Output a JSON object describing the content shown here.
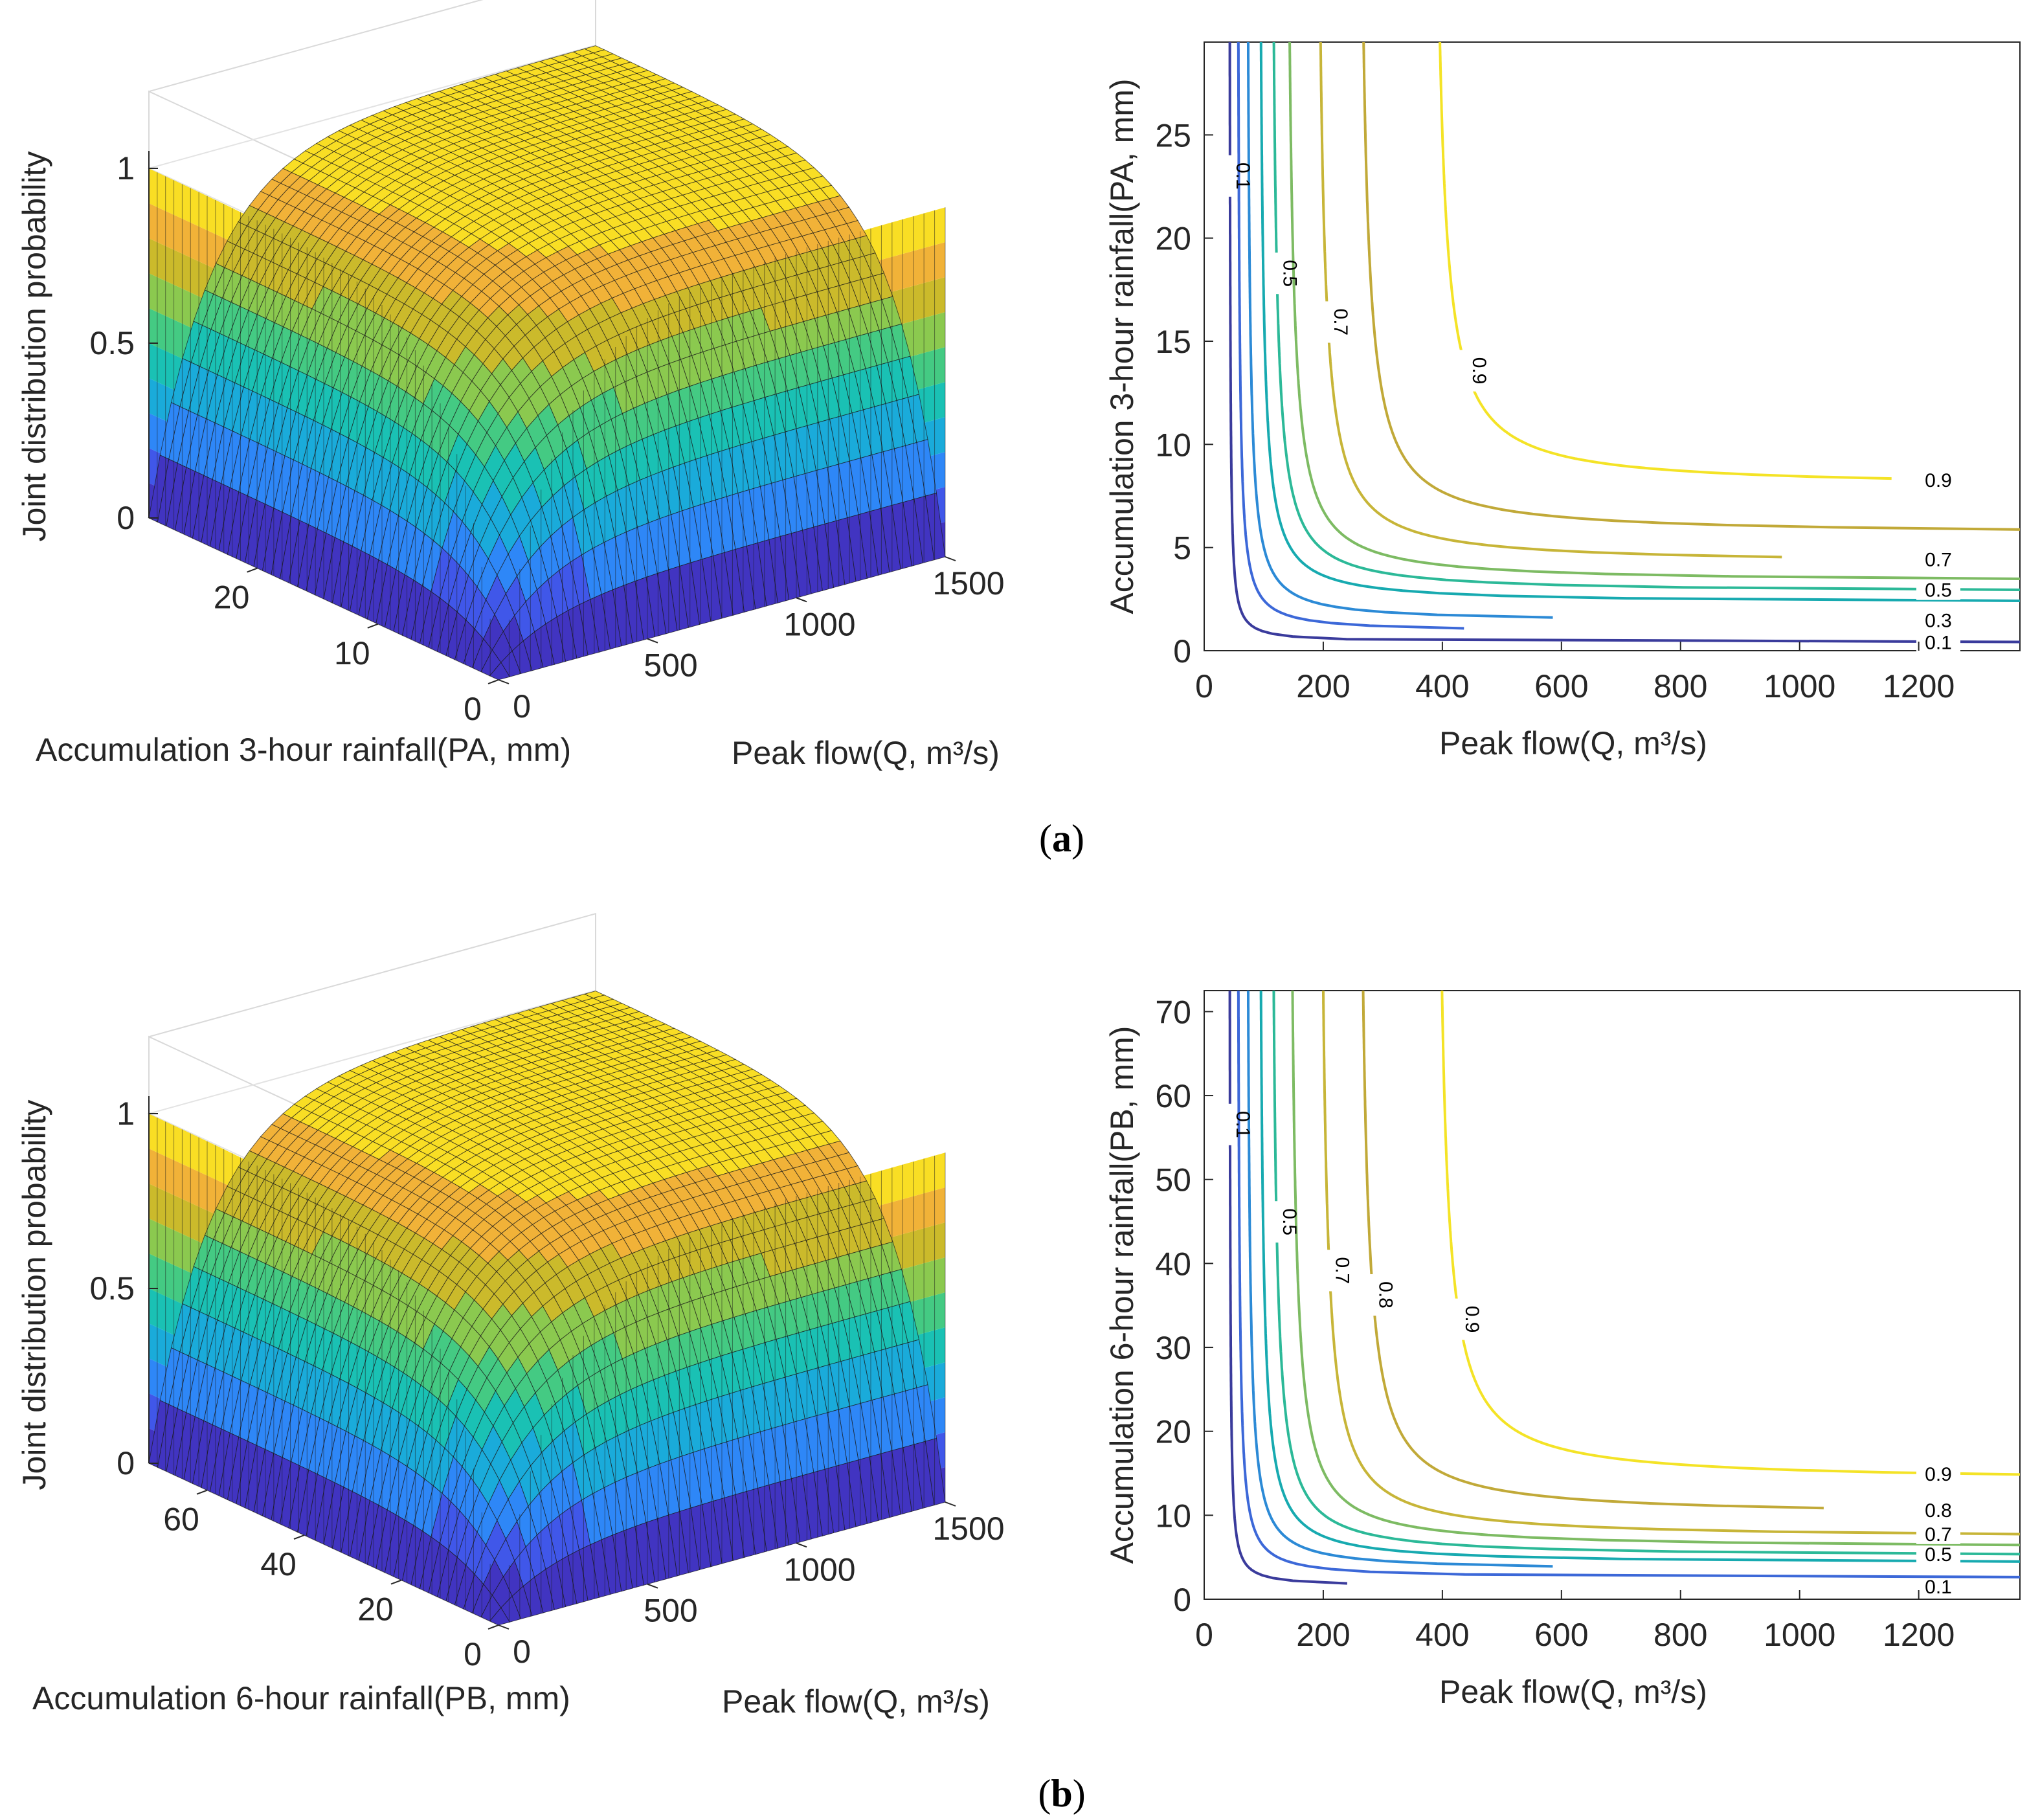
{
  "panels": [
    {
      "label_letter": "a",
      "surface": {
        "zlabel": "Joint distribution probability",
        "xlabel": "Peak flow(Q, m³/s)",
        "ylabel": "Accumulation 3-hour rainfall(PA, mm)",
        "zticks": [
          "0",
          "0.5",
          "1"
        ],
        "xticks": [
          "0",
          "500",
          "1000",
          "1500"
        ],
        "yticks": [
          "0",
          "10",
          "20"
        ]
      },
      "contour": {
        "xlabel": "Peak flow(Q, m³/s)",
        "ylabel": "Accumulation 3-hour rainfall(PA, mm)",
        "xticks": [
          "0",
          "200",
          "400",
          "600",
          "800",
          "1000",
          "1200"
        ],
        "yticks": [
          "0",
          "5",
          "10",
          "15",
          "20",
          "25"
        ]
      }
    },
    {
      "label_letter": "b",
      "surface": {
        "zlabel": "Joint distribution probability",
        "xlabel": "Peak flow(Q, m³/s)",
        "ylabel": "Accumulation 6-hour rainfall(PB, mm)",
        "zticks": [
          "0",
          "0.5",
          "1"
        ],
        "xticks": [
          "0",
          "500",
          "1000",
          "1500"
        ],
        "yticks": [
          "0",
          "20",
          "40",
          "60"
        ]
      },
      "contour": {
        "xlabel": "Peak flow(Q, m³/s)",
        "ylabel": "Accumulation 6-hour rainfall(PB, mm)",
        "xticks": [
          "0",
          "200",
          "400",
          "600",
          "800",
          "1000",
          "1200"
        ],
        "yticks": [
          "0",
          "10",
          "20",
          "30",
          "40",
          "50",
          "60",
          "70"
        ]
      }
    }
  ],
  "chart_data": [
    {
      "type": "surface",
      "panel": "a",
      "x": {
        "label": "Peak flow(Q, m³/s)",
        "range": [
          0,
          1370
        ]
      },
      "y": {
        "label": "Accumulation 3-hour rainfall(PA, mm)",
        "range": [
          0,
          29
        ]
      },
      "z": {
        "label": "Joint distribution probability",
        "range": [
          0,
          1
        ]
      },
      "colormap": [
        "#3e26a8",
        "#2e87f7",
        "#1ec8a0",
        "#cbba2b",
        "#f9b03b",
        "#f9fb15"
      ]
    },
    {
      "type": "contour",
      "panel": "a",
      "xlabel": "Peak flow(Q, m³/s)",
      "ylabel": "Accumulation 3-hour rainfall(PA, mm)",
      "xlim": [
        0,
        1370
      ],
      "ylim": [
        0,
        29.5
      ],
      "levels": [
        {
          "level": "0.1",
          "label": "0.1",
          "color": "#3a3b9c",
          "x_asymptote": 42,
          "y_asymptote": 0.4
        },
        {
          "level": "0.2",
          "label": "",
          "color": "#3c68d8",
          "x_asymptote": 55,
          "y_asymptote": 0.9
        },
        {
          "level": "0.3",
          "label": "0.3",
          "color": "#2c8ad6",
          "x_asymptote": 70,
          "y_asymptote": 1.4
        },
        {
          "level": "0.4",
          "label": "",
          "color": "#17aab0",
          "x_asymptote": 90,
          "y_asymptote": 2.3
        },
        {
          "level": "0.5",
          "label": "0.5",
          "color": "#2cb998",
          "x_asymptote": 110,
          "y_asymptote": 2.8
        },
        {
          "level": "0.6",
          "label": "",
          "color": "#7dbb63",
          "x_asymptote": 135,
          "y_asymptote": 3.3
        },
        {
          "level": "0.7",
          "label": "0.7",
          "color": "#c7b538",
          "x_asymptote": 185,
          "y_asymptote": 4.2
        },
        {
          "level": "0.8",
          "label": "",
          "color": "#c1a938",
          "x_asymptote": 255,
          "y_asymptote": 5.6
        },
        {
          "level": "0.9",
          "label": "0.9",
          "color": "#f4e326",
          "x_asymptote": 380,
          "y_asymptote": 7.9
        }
      ]
    },
    {
      "type": "surface",
      "panel": "b",
      "x": {
        "label": "Peak flow(Q, m³/s)",
        "range": [
          0,
          1370
        ]
      },
      "y": {
        "label": "Accumulation 6-hour rainfall(PB, mm)",
        "range": [
          0,
          70
        ]
      },
      "z": {
        "label": "Joint distribution probability",
        "range": [
          0,
          1
        ]
      },
      "colormap": [
        "#3e26a8",
        "#2e87f7",
        "#1ec8a0",
        "#cbba2b",
        "#f9b03b",
        "#f9fb15"
      ]
    },
    {
      "type": "contour",
      "panel": "b",
      "xlabel": "Peak flow(Q, m³/s)",
      "ylabel": "Accumulation 6-hour rainfall(PB, mm)",
      "xlim": [
        0,
        1370
      ],
      "ylim": [
        0,
        72.5
      ],
      "levels": [
        {
          "level": "0.1",
          "label": "0.1",
          "color": "#3a3b9c",
          "x_asymptote": 42,
          "y_asymptote": 1.5
        },
        {
          "level": "0.2",
          "label": "",
          "color": "#3c68d8",
          "x_asymptote": 55,
          "y_asymptote": 2.5
        },
        {
          "level": "0.3",
          "label": "",
          "color": "#2c8ad6",
          "x_asymptote": 70,
          "y_asymptote": 3.4
        },
        {
          "level": "0.4",
          "label": "",
          "color": "#17aab0",
          "x_asymptote": 90,
          "y_asymptote": 4.2
        },
        {
          "level": "0.5",
          "label": "0.5",
          "color": "#2cb998",
          "x_asymptote": 110,
          "y_asymptote": 5.0
        },
        {
          "level": "0.6",
          "label": "",
          "color": "#7dbb63",
          "x_asymptote": 140,
          "y_asymptote": 6.0
        },
        {
          "level": "0.7",
          "label": "0.7",
          "color": "#c7b538",
          "x_asymptote": 190,
          "y_asymptote": 7.2
        },
        {
          "level": "0.8",
          "label": "0.8",
          "color": "#c1a938",
          "x_asymptote": 255,
          "y_asymptote": 9.9
        },
        {
          "level": "0.9",
          "label": "0.9",
          "color": "#f4e326",
          "x_asymptote": 385,
          "y_asymptote": 14.0
        }
      ]
    }
  ]
}
